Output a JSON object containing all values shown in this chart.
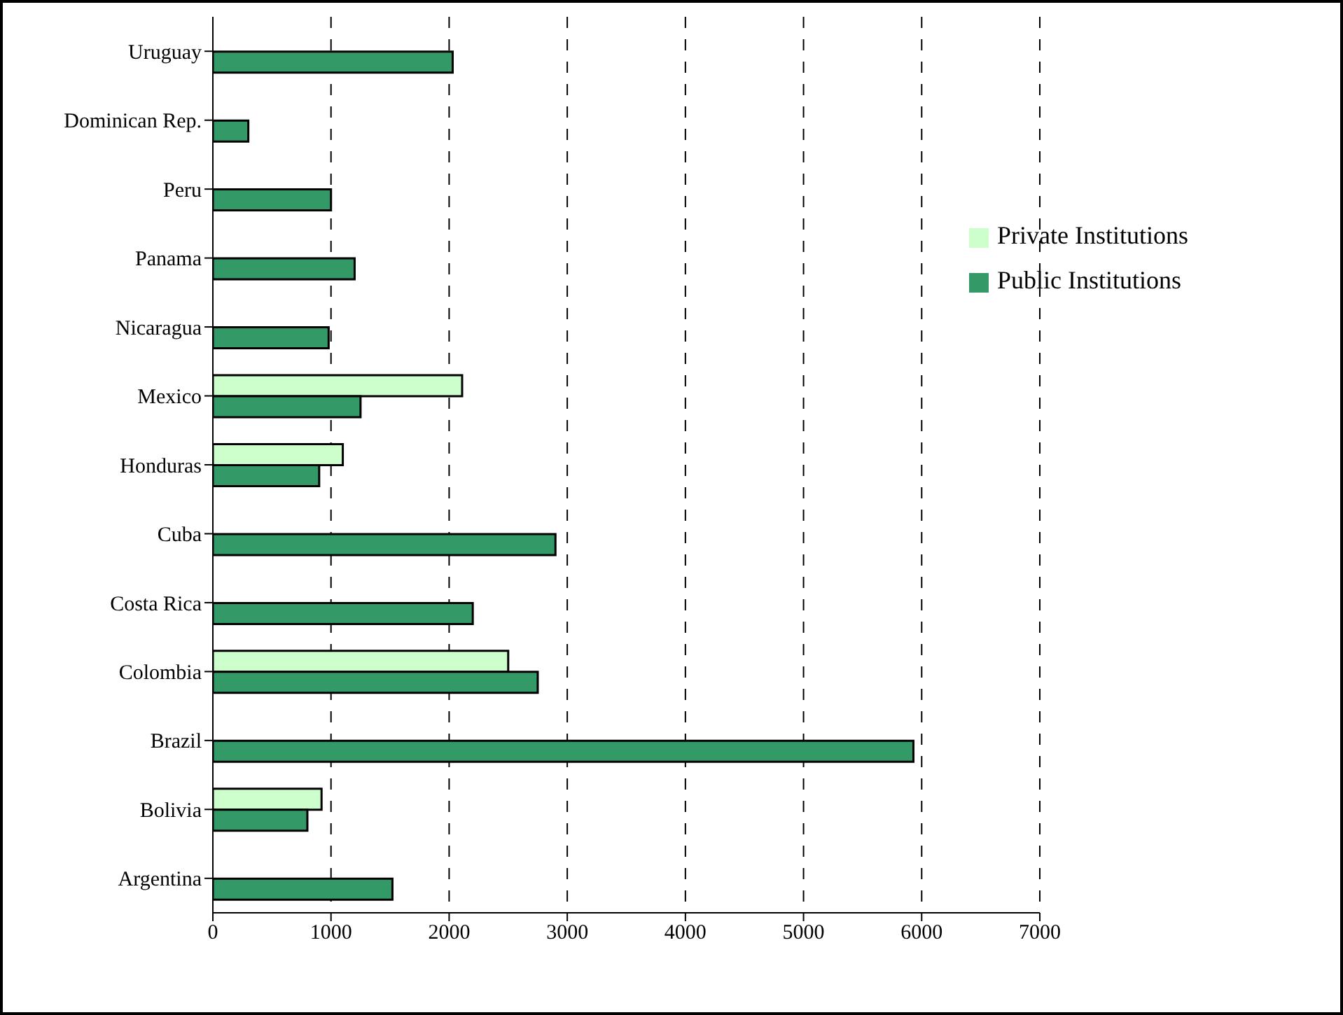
{
  "chart_data": {
    "type": "bar",
    "orientation": "horizontal",
    "categories": [
      "Uruguay",
      "Dominican Rep.",
      "Peru",
      "Panama",
      "Nicaragua",
      "Mexico",
      "Honduras",
      "Cuba",
      "Costa Rica",
      "Colombia",
      "Brazil",
      "Bolivia",
      "Argentina"
    ],
    "series": [
      {
        "name": "Private Institutions",
        "color": "#ccffcc",
        "values": [
          null,
          null,
          null,
          null,
          null,
          2110,
          1100,
          null,
          null,
          2500,
          null,
          920,
          null
        ]
      },
      {
        "name": "Public Institutions",
        "color": "#339966",
        "values": [
          2030,
          300,
          1000,
          1200,
          980,
          1250,
          900,
          2900,
          2200,
          2750,
          5930,
          800,
          1520
        ]
      }
    ],
    "xlim": [
      0,
      7000
    ],
    "xticks": [
      0,
      1000,
      2000,
      3000,
      4000,
      5000,
      6000,
      7000
    ],
    "grid": "x",
    "legend": "top right"
  }
}
